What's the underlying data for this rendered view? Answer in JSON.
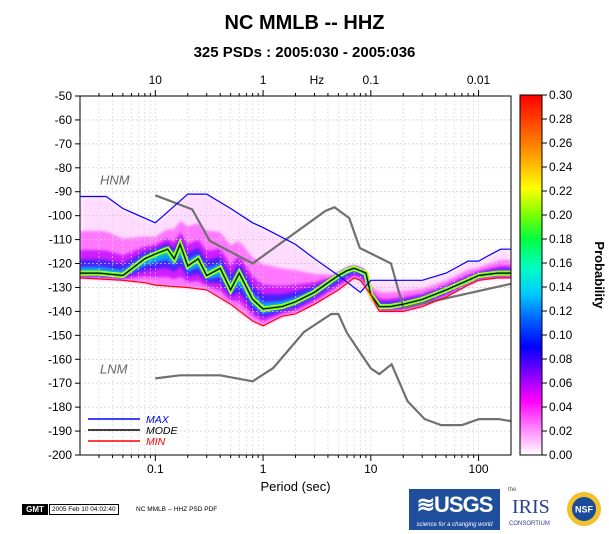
{
  "title": "NC MMLB -- HHZ",
  "subtitle": "325 PSDs : 2005:030 - 2005:036",
  "chart_data": {
    "type": "heatmap",
    "x_scale": "log",
    "xlabel": "Period (sec)",
    "xlim": [
      0.02,
      200
    ],
    "x_ticks": [
      "0.1",
      "1",
      "10",
      "100"
    ],
    "top_axis_label": "Hz",
    "top_ticks": [
      "10",
      "1",
      "0.1",
      "0.01"
    ],
    "ylim": [
      -200,
      -50
    ],
    "y_ticks": [
      "-50",
      "-60",
      "-70",
      "-80",
      "-90",
      "-100",
      "-110",
      "-120",
      "-130",
      "-140",
      "-150",
      "-160",
      "-170",
      "-180",
      "-190",
      "-200"
    ],
    "colorbar": {
      "label": "Probability",
      "range": [
        0,
        0.3
      ],
      "ticks": [
        "0.30",
        "0.28",
        "0.26",
        "0.24",
        "0.22",
        "0.20",
        "0.18",
        "0.16",
        "0.14",
        "0.12",
        "0.10",
        "0.08",
        "0.06",
        "0.04",
        "0.02",
        "0.00"
      ]
    },
    "reference_labels": {
      "hnm": "HNM",
      "lnm": "LNM"
    },
    "legend": {
      "position": "bottom-left",
      "items": [
        {
          "name": "MAX",
          "color": "#0000ff"
        },
        {
          "name": "MODE",
          "color": "#000000"
        },
        {
          "name": "MIN",
          "color": "#ff0000"
        }
      ]
    },
    "series": [
      {
        "name": "MAX",
        "color": "#0000ff",
        "x": [
          0.02,
          0.035,
          0.05,
          0.1,
          0.15,
          0.2,
          0.3,
          0.5,
          0.8,
          1,
          2,
          3,
          5,
          8,
          10,
          15,
          20,
          30,
          50,
          80,
          100,
          120,
          160,
          200
        ],
        "y": [
          -92,
          -92,
          -97,
          -103,
          -96,
          -91,
          -91,
          -97,
          -103,
          -105,
          -112,
          -118,
          -125,
          -132,
          -127,
          -127,
          -127,
          -127,
          -124,
          -119,
          -119,
          -117,
          -114,
          -114
        ]
      },
      {
        "name": "MODE",
        "color": "#000000",
        "x": [
          0.02,
          0.03,
          0.05,
          0.08,
          0.1,
          0.13,
          0.15,
          0.17,
          0.2,
          0.25,
          0.3,
          0.4,
          0.5,
          0.6,
          0.8,
          1,
          1.5,
          2,
          3,
          4,
          5,
          6,
          7,
          8,
          9,
          10,
          12,
          15,
          20,
          30,
          50,
          80,
          100,
          150,
          200
        ],
        "y": [
          -124,
          -124,
          -125,
          -118,
          -116,
          -114,
          -118,
          -112,
          -121,
          -118,
          -125,
          -122,
          -131,
          -124,
          -135,
          -139,
          -138,
          -136,
          -132,
          -128,
          -125,
          -123,
          -122,
          -123,
          -124,
          -133,
          -138,
          -138,
          -137,
          -135,
          -131,
          -127,
          -125,
          -124,
          -124
        ]
      },
      {
        "name": "MIN",
        "color": "#ff0000",
        "x": [
          0.02,
          0.05,
          0.08,
          0.1,
          0.2,
          0.3,
          0.5,
          0.8,
          1,
          1.5,
          2,
          3,
          5,
          7,
          8,
          10,
          12,
          15,
          20,
          30,
          50,
          80,
          100,
          150,
          200
        ],
        "y": [
          -126,
          -127,
          -128,
          -129,
          -130,
          -131,
          -137,
          -144,
          -146,
          -142,
          -141,
          -137,
          -131,
          -126,
          -127,
          -133,
          -140,
          -140,
          -140,
          -138,
          -134,
          -129,
          -127,
          -126,
          -126
        ]
      }
    ],
    "reference_curves": [
      {
        "name": "HNM",
        "color": "#707070",
        "x": [
          0.1,
          0.22,
          0.32,
          0.8,
          3.8,
          4.6,
          6.3,
          7.9,
          15.4,
          20,
          354
        ],
        "y": [
          -91.5,
          -97.4,
          -110.5,
          -120,
          -98,
          -96.5,
          -101,
          -113.5,
          -120,
          -138.5,
          -126
        ]
      },
      {
        "name": "LNM",
        "color": "#707070",
        "x": [
          0.1,
          0.17,
          0.4,
          0.8,
          1.24,
          2.4,
          4.3,
          5,
          6,
          10,
          12,
          15.6,
          21.9,
          31.6,
          45,
          70,
          101,
          154,
          328
        ],
        "y": [
          -168,
          -166.7,
          -166.7,
          -169.2,
          -163.7,
          -148.6,
          -141.1,
          -141.1,
          -149,
          -163.8,
          -166.2,
          -162.1,
          -177.5,
          -185,
          -187.5,
          -187.5,
          -185,
          -185,
          -187.5
        ]
      }
    ]
  }
}
